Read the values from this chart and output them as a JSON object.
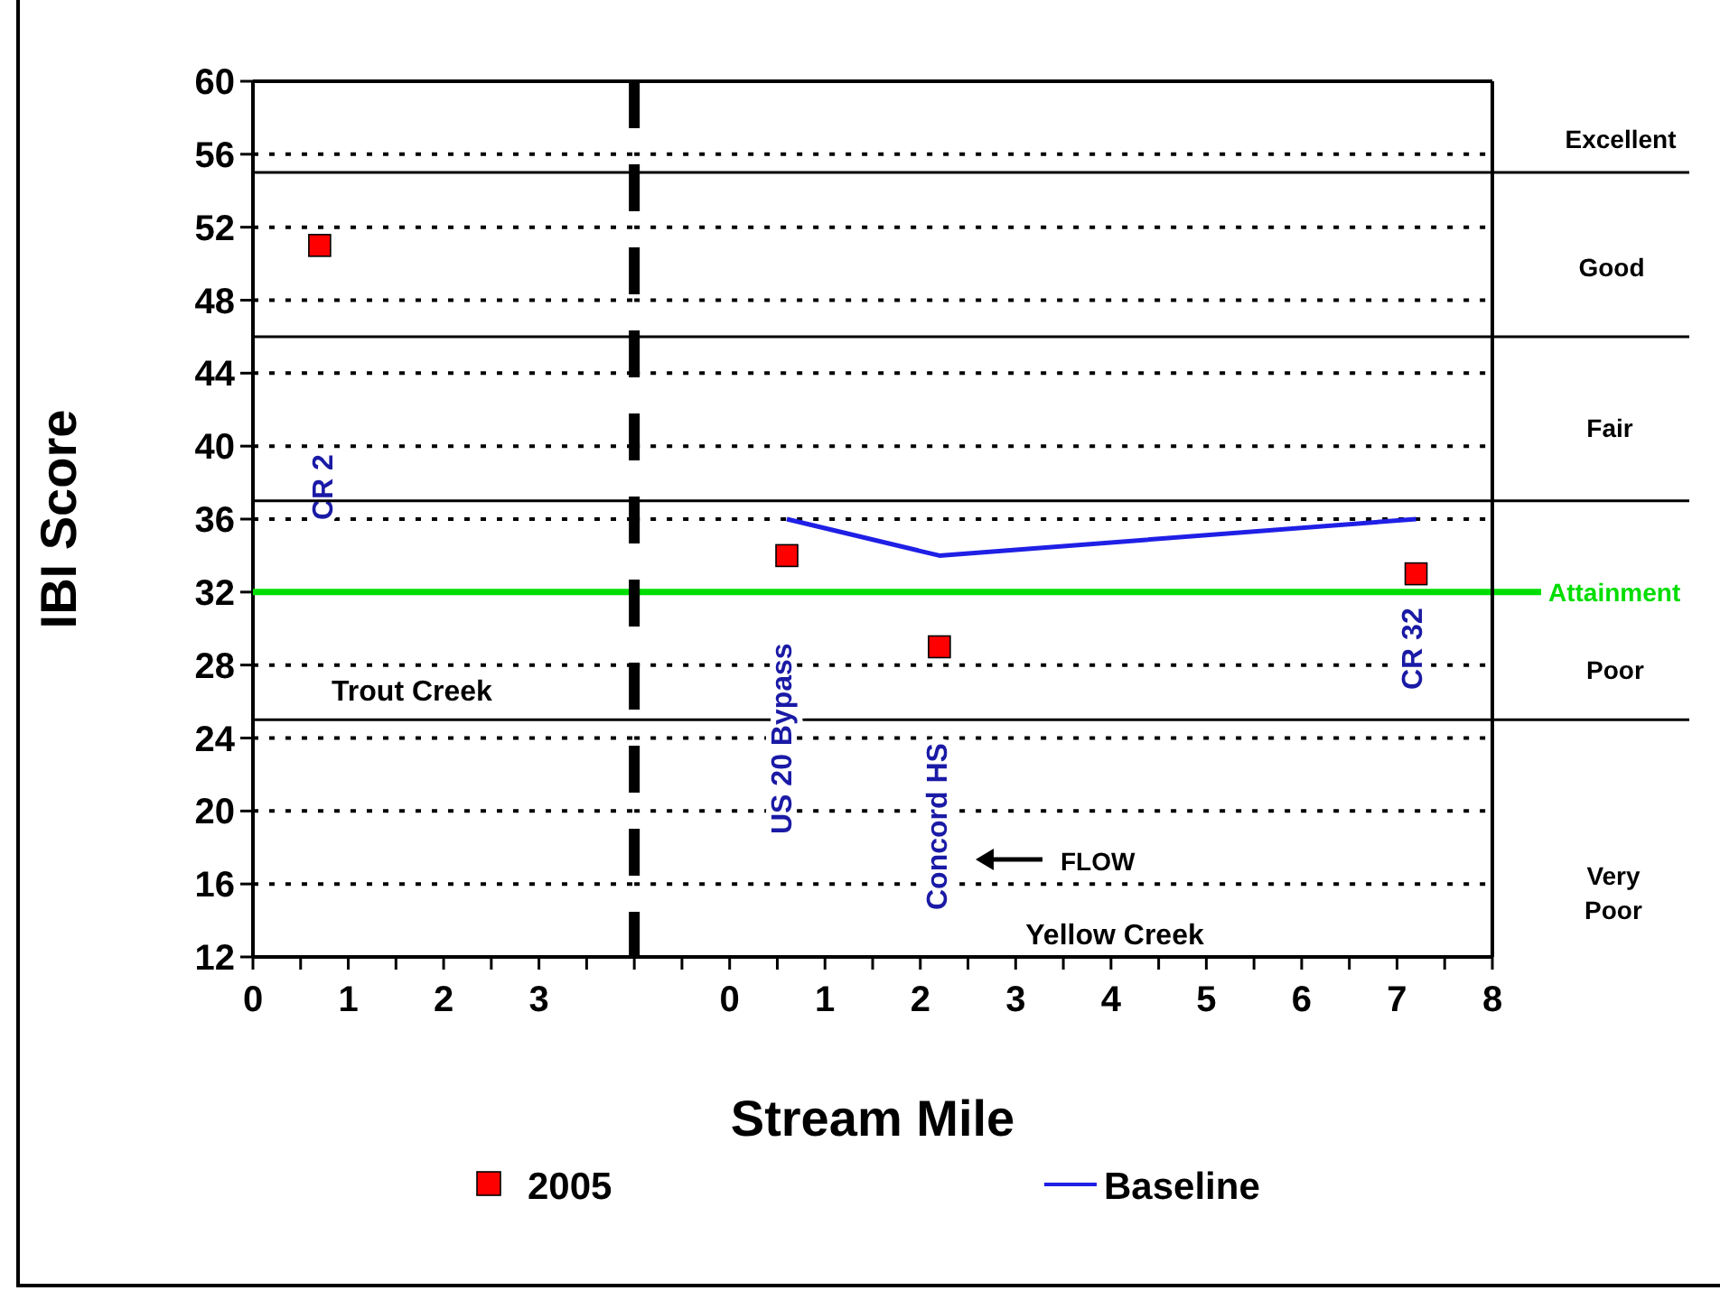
{
  "chart_data": [
    {
      "type": "scatter",
      "ylabel": "IBI Score",
      "xlim": [
        0,
        4
      ],
      "xticks": [
        0,
        {
          "value": 0.5,
          "label": null
        },
        1,
        {
          "value": 1.5,
          "label": null
        },
        2,
        {
          "value": 2.5,
          "label": null
        },
        3,
        {
          "value": 3.5,
          "label": null
        },
        {
          "value": 4,
          "label": null
        }
      ],
      "ylim": [
        12,
        60
      ],
      "yticks": [
        12,
        16,
        20,
        24,
        28,
        32,
        36,
        40,
        44,
        48,
        52,
        56,
        60
      ],
      "grid": "y",
      "marker": "square",
      "series": [
        {
          "color": "#ff0000",
          "x": [
            0.7
          ],
          "values": [
            51
          ]
        }
      ],
      "annotations": [
        "CR 2",
        "Trout Creek"
      ]
    },
    {
      "type": "scatter",
      "xlabel": "Stream Mile",
      "xlim": [
        -1,
        8
      ],
      "xticks": [
        {
          "value": -0.5,
          "label": null
        },
        0,
        {
          "value": 0.5,
          "label": null
        },
        1,
        {
          "value": 1.5,
          "label": null
        },
        2,
        {
          "value": 2.5,
          "label": null
        },
        3,
        {
          "value": 3.5,
          "label": null
        },
        4,
        {
          "value": 4.5,
          "label": null
        },
        5,
        {
          "value": 5.5,
          "label": null
        },
        6,
        {
          "value": 6.5,
          "label": null
        },
        7,
        {
          "value": 7.5,
          "label": null
        },
        8
      ],
      "ylim": [
        12,
        60
      ],
      "yticks": [
        12,
        16,
        20,
        24,
        28,
        32,
        36,
        40,
        44,
        48,
        52,
        56,
        60
      ],
      "grid": "y",
      "tick_labels": "x",
      "legend": "bottom",
      "marker": "square",
      "series": [
        {
          "name": "2005",
          "color": "#ff0000",
          "x": [
            0.6,
            2.2,
            7.2
          ],
          "values": [
            34,
            29,
            33
          ]
        },
        {
          "name": "Baseline",
          "type": "line",
          "marker": "none",
          "line_style": "solid",
          "color": "#1f1fe6",
          "x": [
            0.6,
            2.2,
            7.2
          ],
          "values": [
            36,
            34,
            36
          ]
        }
      ],
      "ref_lines": [
        {
          "axis": "y",
          "value": 32,
          "label": "Attainment",
          "color": "#00dd00"
        },
        {
          "axis": "y",
          "value": 55,
          "color": "#000000"
        },
        {
          "axis": "y",
          "value": 46,
          "color": "#000000"
        },
        {
          "axis": "y",
          "value": 37,
          "color": "#000000"
        },
        {
          "axis": "y",
          "value": 25,
          "color": "#000000"
        }
      ],
      "annotations": [
        "US 20 Bypass",
        "Concord HS",
        "CR 32",
        "FLOW",
        "Yellow Creek",
        "Excellent",
        "Good",
        "Fair",
        "Poor",
        "Very Poor"
      ]
    }
  ]
}
